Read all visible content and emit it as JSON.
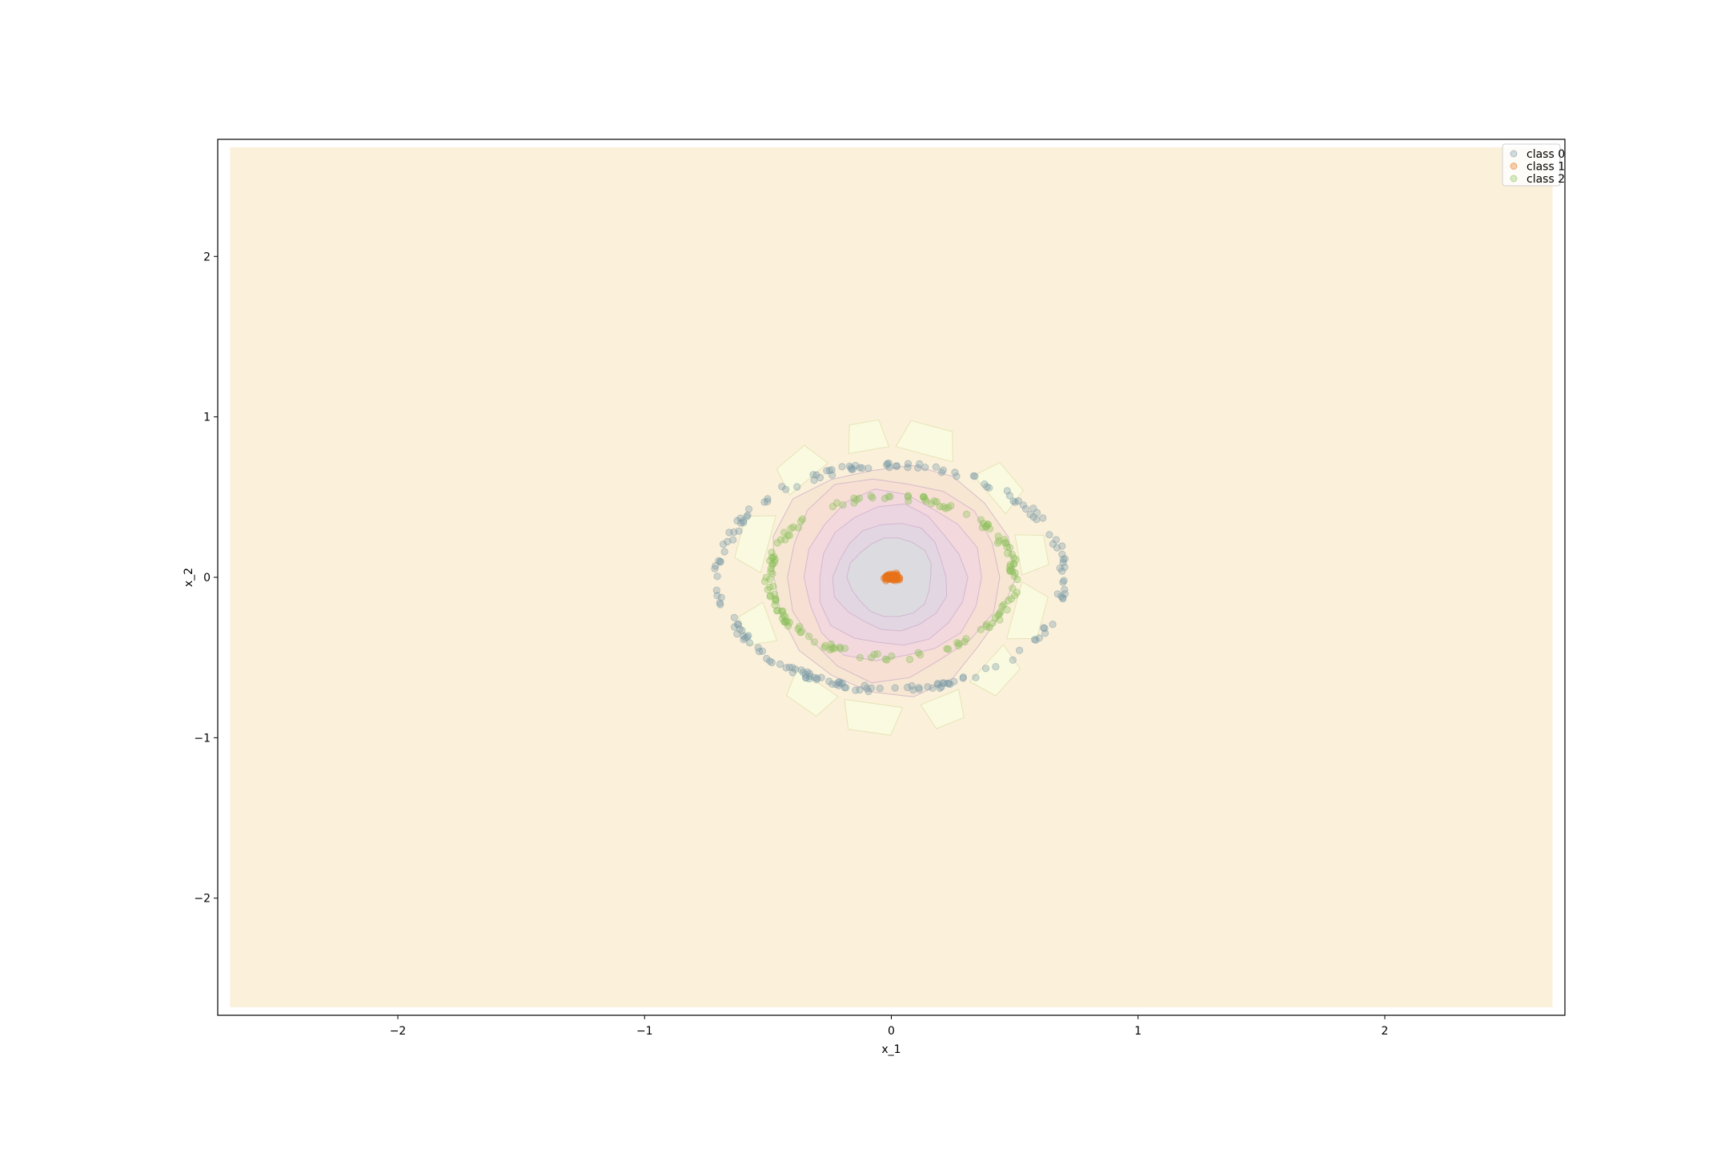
{
  "chart_data": {
    "type": "scatter",
    "title": "",
    "xlabel": "x_1",
    "ylabel": "x_2",
    "xlim": [
      -2.73,
      2.73
    ],
    "ylim": [
      -2.73,
      2.73
    ],
    "filled_region": {
      "xlim": [
        -2.68,
        2.68
      ],
      "ylim": [
        -2.68,
        2.68
      ]
    },
    "xticks": [
      {
        "value": -2,
        "label": "−2"
      },
      {
        "value": -1,
        "label": "−1"
      },
      {
        "value": 0,
        "label": "0"
      },
      {
        "value": 1,
        "label": "1"
      },
      {
        "value": 2,
        "label": "2"
      }
    ],
    "yticks": [
      {
        "value": -2,
        "label": "−2"
      },
      {
        "value": -1,
        "label": "−1"
      },
      {
        "value": 0,
        "label": "0"
      },
      {
        "value": 1,
        "label": "1"
      },
      {
        "value": 2,
        "label": "2"
      }
    ],
    "grid": false,
    "legend_position": "top-right",
    "background_color": "#fbf0da",
    "decision_contours": [
      {
        "radius": 0.49,
        "color": "#f6e6d2"
      },
      {
        "radius": 0.43,
        "color": "#f7dfd3"
      },
      {
        "radius": 0.36,
        "color": "#f3d9de"
      },
      {
        "radius": 0.3,
        "color": "#ebd5e0"
      },
      {
        "radius": 0.23,
        "color": "#e3d6e3"
      },
      {
        "radius": 0.17,
        "color": "#dcdbe0"
      }
    ],
    "series": [
      {
        "name": "class 0",
        "color": "#7a9aa6",
        "radius": 0.7,
        "noise": 0.012,
        "count": 190
      },
      {
        "name": "class 1",
        "color": "#e8731a",
        "radius": 0.0,
        "noise": 0.012,
        "count": 80
      },
      {
        "name": "class 2",
        "color": "#8cbf5c",
        "radius": 0.5,
        "noise": 0.012,
        "count": 160
      }
    ]
  }
}
